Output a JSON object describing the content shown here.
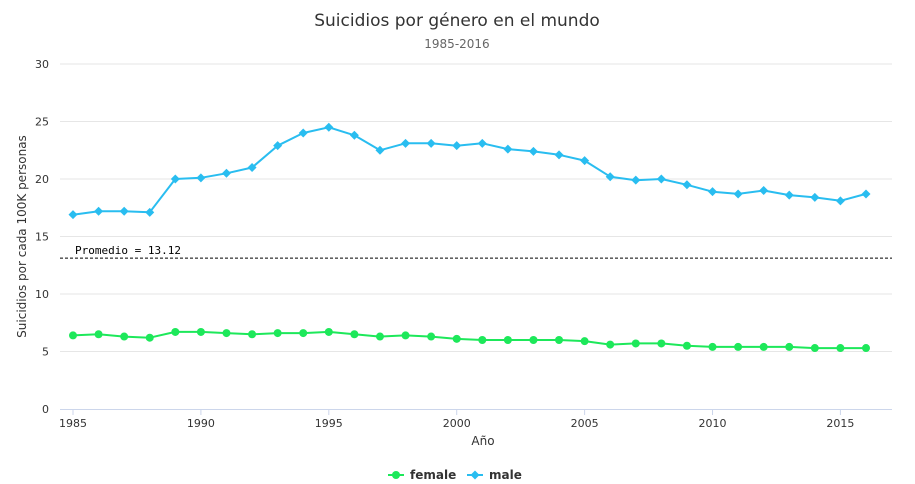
{
  "chart_data": {
    "type": "line",
    "title": "Suicidios por género en el mundo",
    "subtitle": "1985-2016",
    "xlabel": "Año",
    "ylabel": "Suicidios por cada 100K personas",
    "xlim": [
      1985,
      2016
    ],
    "ylim": [
      0,
      30
    ],
    "yticks": [
      0,
      5,
      10,
      15,
      20,
      25,
      30
    ],
    "xticks": [
      1985,
      1990,
      1995,
      2000,
      2005,
      2010,
      2015
    ],
    "grid": true,
    "legend_position": "bottom-center",
    "x": [
      1985,
      1986,
      1987,
      1988,
      1989,
      1990,
      1991,
      1992,
      1993,
      1994,
      1995,
      1996,
      1997,
      1998,
      1999,
      2000,
      2001,
      2002,
      2003,
      2004,
      2005,
      2006,
      2007,
      2008,
      2009,
      2010,
      2011,
      2012,
      2013,
      2014,
      2015,
      2016
    ],
    "series": [
      {
        "name": "female",
        "color": "#1de85a",
        "marker": "circle",
        "values": [
          6.4,
          6.5,
          6.3,
          6.2,
          6.7,
          6.7,
          6.6,
          6.5,
          6.6,
          6.6,
          6.7,
          6.5,
          6.3,
          6.4,
          6.3,
          6.1,
          6.0,
          6.0,
          6.0,
          6.0,
          5.9,
          5.6,
          5.7,
          5.7,
          5.5,
          5.4,
          5.4,
          5.4,
          5.4,
          5.3,
          5.3,
          5.3
        ]
      },
      {
        "name": "male",
        "color": "#29bdf0",
        "marker": "diamond",
        "values": [
          16.9,
          17.2,
          17.2,
          17.1,
          20.0,
          20.1,
          20.5,
          21.0,
          22.9,
          24.0,
          24.5,
          23.8,
          22.5,
          23.1,
          23.1,
          22.9,
          23.1,
          22.6,
          22.4,
          22.1,
          21.6,
          20.2,
          19.9,
          20.0,
          19.5,
          18.9,
          18.7,
          19.0,
          18.6,
          18.4,
          18.1,
          18.7
        ]
      }
    ],
    "annotations": [
      {
        "label": "Promedio = 13.12",
        "y": 13.12,
        "style": "dashed"
      }
    ]
  }
}
